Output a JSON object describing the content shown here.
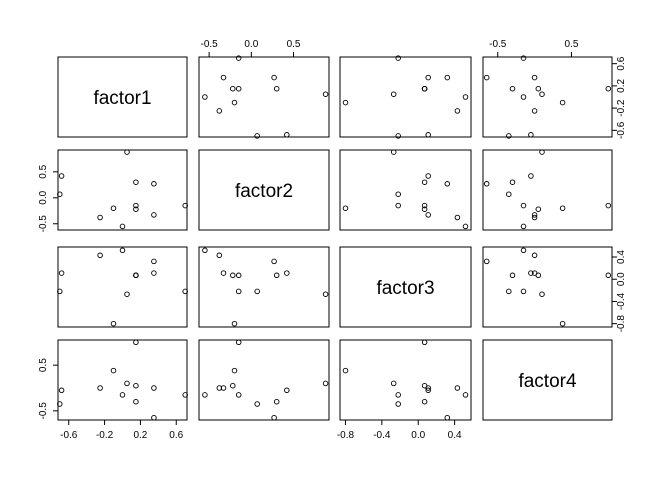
{
  "chart_data": {
    "type": "scatter",
    "subtype": "pairs-matrix",
    "variables": [
      "factor1",
      "factor2",
      "factor3",
      "factor4"
    ],
    "ranges": {
      "factor1": [
        -0.72,
        0.72
      ],
      "factor2": [
        -0.62,
        0.92
      ],
      "factor3": [
        -0.86,
        0.58
      ],
      "factor4": [
        -0.7,
        1.05
      ]
    },
    "ticks": {
      "factor1": [
        -0.6,
        -0.2,
        0.2,
        0.6
      ],
      "factor2": [
        -0.5,
        0.0,
        0.5
      ],
      "factor3": [
        -0.8,
        -0.4,
        0.0,
        0.4
      ],
      "factor4": [
        -0.5,
        0.5
      ]
    },
    "tick_labels": {
      "factor1": [
        "-0.6",
        "-0.2",
        "0.2",
        "0.6"
      ],
      "factor2": [
        "-0.5",
        "0.0",
        "0.5"
      ],
      "factor3": [
        "-0.8",
        "-0.4",
        "0.0",
        "0.4"
      ],
      "factor4": [
        "-0.5",
        "0.5"
      ]
    },
    "points": {
      "factor1": [
        0.7,
        -0.7,
        -0.68,
        -0.25,
        -0.1,
        0.05,
        0.0,
        0.15,
        0.15,
        0.35,
        0.35,
        0.15
      ],
      "factor2": [
        -0.15,
        0.07,
        0.42,
        -0.38,
        -0.2,
        0.88,
        -0.55,
        -0.15,
        -0.22,
        -0.33,
        0.27,
        0.3
      ],
      "factor3": [
        -0.22,
        -0.22,
        0.11,
        0.43,
        -0.8,
        -0.27,
        0.52,
        0.07,
        0.07,
        0.11,
        0.32,
        0.07
      ],
      "factor4": [
        -0.15,
        -0.35,
        -0.05,
        0.0,
        0.38,
        0.1,
        -0.15,
        1.0,
        0.05,
        0.0,
        -0.65,
        -0.3
      ]
    },
    "grid": false,
    "legend": "none"
  }
}
